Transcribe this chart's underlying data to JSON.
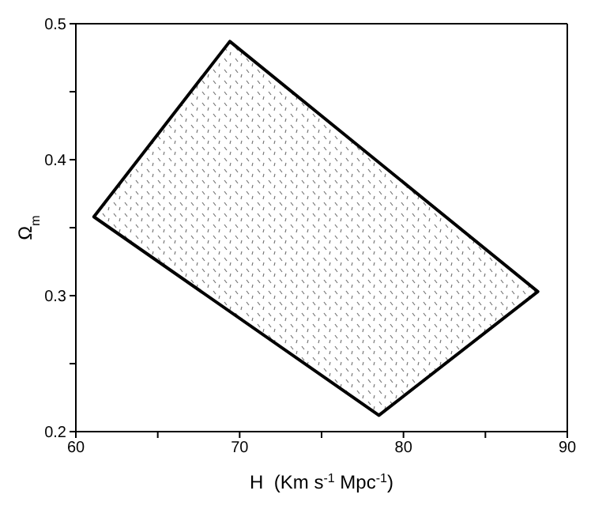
{
  "chart_data": {
    "type": "area",
    "xlabel": "H  (Km s$^{-1}$ Mpc$^{-1}$)",
    "ylabel": "Ω$_{m}$",
    "xlim": [
      60,
      90
    ],
    "xticks": [
      60,
      {
        "value": 65,
        "label": null
      },
      70,
      {
        "value": 75,
        "label": null
      },
      80,
      {
        "value": 85,
        "label": null
      },
      90
    ],
    "ylim": [
      0.2,
      0.5
    ],
    "yticks": [
      0.2,
      {
        "value": 0.25,
        "label": null
      },
      0.3,
      {
        "value": 0.35,
        "label": null
      },
      0.4,
      {
        "value": 0.45,
        "label": null
      },
      0.5
    ],
    "marker": "none",
    "line_style": "solid",
    "series": [
      {
        "color": "#000000",
        "x": [
          61.1,
          69.4,
          88.2,
          78.5,
          61.1
        ],
        "values": [
          0.358,
          0.487,
          0.303,
          0.212,
          0.358
        ]
      }
    ]
  }
}
